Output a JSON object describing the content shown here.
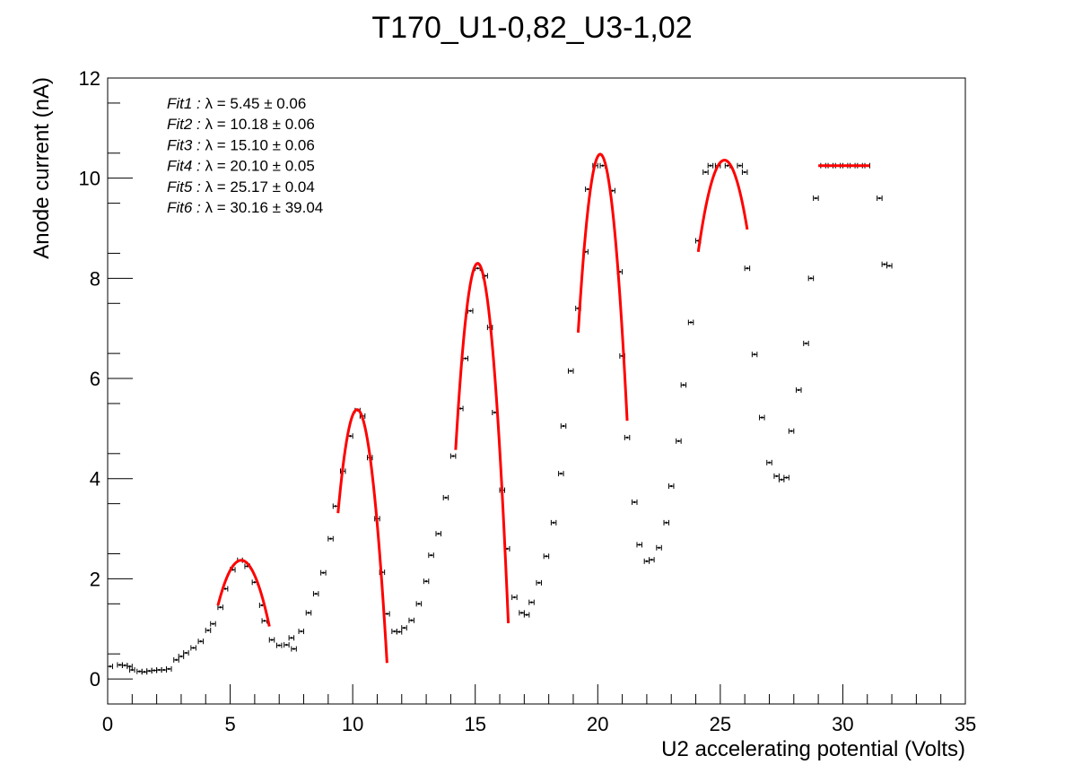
{
  "chart_data": {
    "type": "scatter",
    "title": "T170_U1-0,82_U3-1,02",
    "xlabel": "U2 accelerating potential (Volts)",
    "ylabel": "Anode current (nA)",
    "xlim": [
      0,
      35
    ],
    "ylim": [
      -0.5,
      12
    ],
    "xticks": [
      0,
      5,
      10,
      15,
      20,
      25,
      30,
      35
    ],
    "xtick_labels": [
      "0",
      "5",
      "10",
      "15",
      "20",
      "25",
      "30",
      "35"
    ],
    "yticks": [
      0,
      2,
      4,
      6,
      8,
      10,
      12
    ],
    "ytick_labels": [
      "0",
      "2",
      "4",
      "6",
      "8",
      "10",
      "12"
    ],
    "grid": false,
    "legend_position": "top-left",
    "colors": {
      "data": "#000000",
      "fit": "#ff0000",
      "frame": "#000000"
    },
    "fit_annotations": [
      {
        "prefix": "Fit1 : ",
        "text": "λ = 5.45 ± 0.06"
      },
      {
        "prefix": "Fit2 : ",
        "text": "λ = 10.18 ± 0.06"
      },
      {
        "prefix": "Fit3 : ",
        "text": "λ = 15.10 ± 0.06"
      },
      {
        "prefix": "Fit4 : ",
        "text": "λ = 20.10 ± 0.05"
      },
      {
        "prefix": "Fit5 : ",
        "text": "λ = 25.17 ± 0.04"
      },
      {
        "prefix": "Fit6 : ",
        "text": "λ = 30.16 ± 39.04"
      }
    ],
    "series": [
      {
        "type": "scatter",
        "x_error": 0.1,
        "points": [
          [
            0.1,
            0.25
          ],
          [
            0.5,
            0.28
          ],
          [
            0.7,
            0.27
          ],
          [
            0.9,
            0.25
          ],
          [
            1.0,
            0.18
          ],
          [
            1.3,
            0.15
          ],
          [
            1.5,
            0.14
          ],
          [
            1.7,
            0.16
          ],
          [
            1.9,
            0.17
          ],
          [
            2.1,
            0.18
          ],
          [
            2.3,
            0.18
          ],
          [
            2.5,
            0.2
          ],
          [
            2.8,
            0.38
          ],
          [
            3.0,
            0.45
          ],
          [
            3.2,
            0.52
          ],
          [
            3.5,
            0.62
          ],
          [
            3.8,
            0.75
          ],
          [
            4.1,
            0.97
          ],
          [
            4.3,
            1.1
          ],
          [
            4.6,
            1.43
          ],
          [
            4.8,
            1.8
          ],
          [
            5.1,
            2.18
          ],
          [
            5.4,
            2.37
          ],
          [
            5.7,
            2.25
          ],
          [
            6.0,
            1.93
          ],
          [
            6.3,
            1.47
          ],
          [
            6.4,
            1.16
          ],
          [
            6.7,
            0.78
          ],
          [
            7.0,
            0.67
          ],
          [
            7.3,
            0.68
          ],
          [
            7.5,
            0.82
          ],
          [
            7.6,
            0.6
          ],
          [
            7.9,
            0.95
          ],
          [
            8.2,
            1.32
          ],
          [
            8.5,
            1.7
          ],
          [
            8.8,
            2.12
          ],
          [
            9.1,
            2.8
          ],
          [
            9.3,
            3.45
          ],
          [
            9.6,
            4.15
          ],
          [
            9.9,
            4.85
          ],
          [
            10.2,
            5.36
          ],
          [
            10.4,
            5.25
          ],
          [
            10.7,
            4.42
          ],
          [
            11.0,
            3.2
          ],
          [
            11.2,
            2.13
          ],
          [
            11.4,
            1.3
          ],
          [
            11.7,
            0.95
          ],
          [
            11.9,
            0.94
          ],
          [
            12.1,
            1.02
          ],
          [
            12.4,
            1.17
          ],
          [
            12.7,
            1.5
          ],
          [
            13.0,
            1.95
          ],
          [
            13.2,
            2.47
          ],
          [
            13.5,
            2.9
          ],
          [
            13.8,
            3.62
          ],
          [
            14.1,
            4.45
          ],
          [
            14.4,
            5.4
          ],
          [
            14.6,
            6.4
          ],
          [
            14.8,
            7.35
          ],
          [
            15.1,
            8.2
          ],
          [
            15.4,
            8.05
          ],
          [
            15.6,
            7.02
          ],
          [
            15.8,
            5.32
          ],
          [
            16.1,
            3.77
          ],
          [
            16.3,
            2.6
          ],
          [
            16.6,
            1.63
          ],
          [
            16.9,
            1.32
          ],
          [
            17.1,
            1.28
          ],
          [
            17.3,
            1.53
          ],
          [
            17.6,
            1.92
          ],
          [
            17.9,
            2.45
          ],
          [
            18.2,
            3.12
          ],
          [
            18.5,
            4.1
          ],
          [
            18.6,
            5.05
          ],
          [
            18.9,
            6.15
          ],
          [
            19.2,
            7.4
          ],
          [
            19.5,
            8.53
          ],
          [
            19.6,
            9.78
          ],
          [
            19.9,
            10.25
          ],
          [
            20.2,
            10.25
          ],
          [
            20.6,
            9.75
          ],
          [
            20.9,
            8.13
          ],
          [
            21.0,
            6.45
          ],
          [
            21.2,
            4.82
          ],
          [
            21.5,
            3.53
          ],
          [
            21.7,
            2.68
          ],
          [
            22.0,
            2.35
          ],
          [
            22.2,
            2.38
          ],
          [
            22.5,
            2.62
          ],
          [
            22.8,
            3.12
          ],
          [
            23.0,
            3.85
          ],
          [
            23.3,
            4.75
          ],
          [
            23.5,
            5.87
          ],
          [
            23.8,
            7.12
          ],
          [
            24.1,
            8.75
          ],
          [
            24.4,
            10.12
          ],
          [
            24.6,
            10.25
          ],
          [
            24.9,
            10.25
          ],
          [
            25.3,
            10.25
          ],
          [
            25.8,
            10.25
          ],
          [
            26.0,
            10.12
          ],
          [
            26.1,
            8.2
          ],
          [
            26.4,
            6.48
          ],
          [
            26.7,
            5.22
          ],
          [
            27.0,
            4.32
          ],
          [
            27.3,
            4.05
          ],
          [
            27.5,
            3.98
          ],
          [
            27.7,
            4.02
          ],
          [
            27.9,
            4.95
          ],
          [
            28.2,
            5.77
          ],
          [
            28.5,
            6.7
          ],
          [
            28.7,
            8.0
          ],
          [
            28.9,
            9.6
          ],
          [
            29.2,
            10.25
          ],
          [
            29.5,
            10.25
          ],
          [
            29.8,
            10.25
          ],
          [
            30.1,
            10.25
          ],
          [
            30.4,
            10.25
          ],
          [
            30.7,
            10.25
          ],
          [
            31.0,
            10.25
          ],
          [
            31.5,
            9.6
          ],
          [
            31.7,
            8.28
          ],
          [
            31.9,
            8.25
          ]
        ]
      },
      {
        "type": "line",
        "fits": [
          {
            "center": 5.45,
            "peak": 2.37,
            "curvature": 1.0,
            "x_range": [
              4.5,
              6.6
            ]
          },
          {
            "center": 10.18,
            "peak": 5.38,
            "curvature": 3.4,
            "x_range": [
              9.4,
              11.4
            ]
          },
          {
            "center": 15.1,
            "peak": 8.3,
            "curvature": 4.6,
            "x_range": [
              14.2,
              16.35
            ]
          },
          {
            "center": 20.1,
            "peak": 10.48,
            "curvature": 4.4,
            "x_range": [
              19.2,
              21.2
            ]
          },
          {
            "center": 25.17,
            "peak": 10.36,
            "curvature": 1.6,
            "x_range": [
              24.1,
              26.1
            ]
          },
          {
            "center": 30.16,
            "peak": 10.25,
            "curvature": 0.0,
            "x_range": [
              29.0,
              31.1
            ]
          }
        ]
      }
    ]
  }
}
